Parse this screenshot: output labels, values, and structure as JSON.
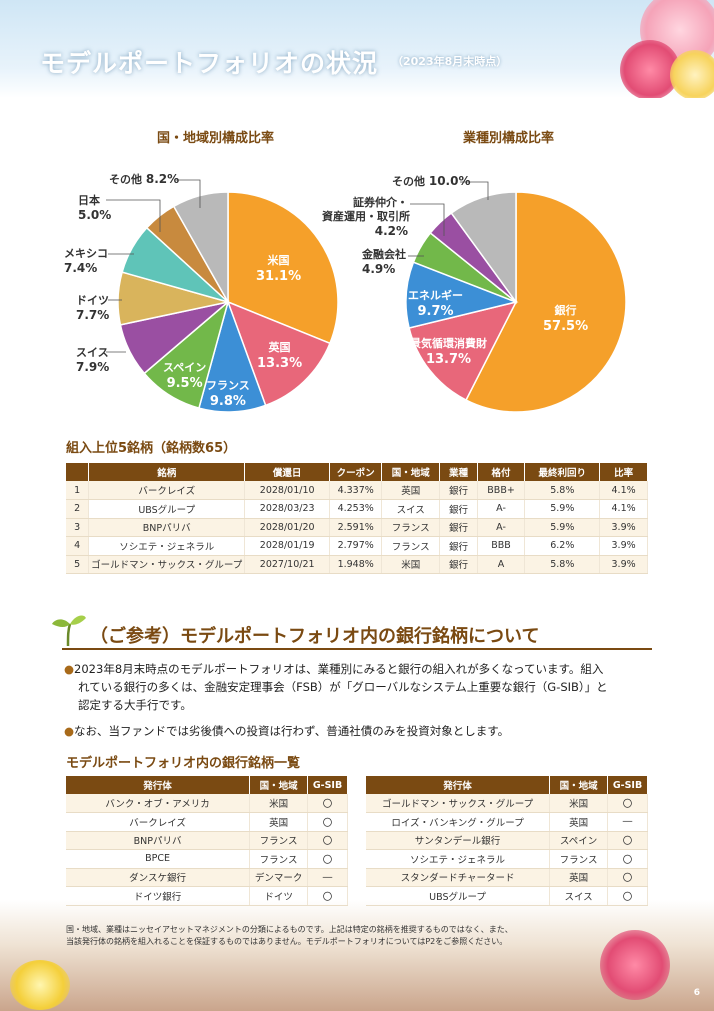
{
  "header": {
    "title": "モデルポートフォリオの状況",
    "date_note": "（2023年8月末時点）"
  },
  "colors": {
    "brown": "#7a4a12",
    "orange": "#f5a02a",
    "red": "#e8677a",
    "blue": "#3c8fd6",
    "green": "#72b84a",
    "purple": "#9a4fa2",
    "teal": "#5fc4b8",
    "sand": "#d9b45c",
    "ochre": "#c88a3e",
    "gray": "#b9b9b9"
  },
  "chart_data": [
    {
      "type": "pie",
      "title": "国・地域別構成比率",
      "slices": [
        {
          "name": "米国",
          "value": 31.1
        },
        {
          "name": "英国",
          "value": 13.3
        },
        {
          "name": "フランス",
          "value": 9.8
        },
        {
          "name": "スペイン",
          "value": 9.5
        },
        {
          "name": "スイス",
          "value": 7.9
        },
        {
          "name": "ドイツ",
          "value": 7.7
        },
        {
          "name": "メキシコ",
          "value": 7.4
        },
        {
          "name": "日本",
          "value": 5.0
        },
        {
          "name": "その他",
          "value": 8.2
        }
      ]
    },
    {
      "type": "pie",
      "title": "業種別構成比率",
      "slices": [
        {
          "name": "銀行",
          "value": 57.5
        },
        {
          "name": "景気循環消費財",
          "value": 13.7
        },
        {
          "name": "エネルギー",
          "value": 9.7
        },
        {
          "name": "金融会社",
          "value": 4.9
        },
        {
          "name": "証券仲介・資産運用・取引所",
          "value": 4.2
        },
        {
          "name": "その他",
          "value": 10.0
        }
      ]
    }
  ],
  "pie1_labels": {
    "us": "米国",
    "us_pct": "31.1%",
    "uk": "英国",
    "uk_pct": "13.3%",
    "fr": "フランス",
    "fr_pct": "9.8%",
    "es": "スペイン",
    "es_pct": "9.5%",
    "ch": "スイス",
    "ch_pct": "7.9%",
    "de": "ドイツ",
    "de_pct": "7.7%",
    "mx": "メキシコ",
    "mx_pct": "7.4%",
    "jp": "日本",
    "jp_pct": "5.0%",
    "other": "その他",
    "other_pct": "8.2%"
  },
  "pie2_labels": {
    "bank": "銀行",
    "bank_pct": "57.5%",
    "cyc": "景気循環消費財",
    "cyc_pct": "13.7%",
    "energy": "エネルギー",
    "energy_pct": "9.7%",
    "fin": "金融会社",
    "fin_pct": "4.9%",
    "sec1": "証券仲介・",
    "sec2": "資産運用・取引所",
    "sec_pct": "4.2%",
    "other": "その他",
    "other_pct": "10.0%"
  },
  "top5": {
    "heading": "組入上位5銘柄（銘柄数65）",
    "columns": [
      "",
      "銘柄",
      "償還日",
      "クーポン",
      "国・地域",
      "業種",
      "格付",
      "最終利回り",
      "比率"
    ],
    "rows": [
      [
        "1",
        "バークレイズ",
        "2028/01/10",
        "4.337%",
        "英国",
        "銀行",
        "BBB+",
        "5.8%",
        "4.1%"
      ],
      [
        "2",
        "UBSグループ",
        "2028/03/23",
        "4.253%",
        "スイス",
        "銀行",
        "A-",
        "5.9%",
        "4.1%"
      ],
      [
        "3",
        "BNPパリバ",
        "2028/01/20",
        "2.591%",
        "フランス",
        "銀行",
        "A-",
        "5.9%",
        "3.9%"
      ],
      [
        "4",
        "ソシエテ・ジェネラル",
        "2028/01/19",
        "2.797%",
        "フランス",
        "銀行",
        "BBB",
        "6.2%",
        "3.9%"
      ],
      [
        "5",
        "ゴールドマン・サックス・グループ",
        "2027/10/21",
        "1.948%",
        "米国",
        "銀行",
        "A",
        "5.8%",
        "3.9%"
      ]
    ]
  },
  "note": {
    "title": "（ご参考）モデルポートフォリオ内の銀行銘柄について",
    "bullet1_line1": "2023年8月末時点のモデルポートフォリオは、業種別にみると銀行の組入れが多くなっています。組入",
    "bullet1_line2": "れている銀行の多くは、金融安定理事会（FSB）が「グローバルなシステム上重要な銀行（G-SIB）」と",
    "bullet1_line3": "認定する大手行です。",
    "bullet2": "なお、当ファンドでは劣後債への投資は行わず、普通社債のみを投資対象とします。",
    "bullet_mark": "●"
  },
  "banks": {
    "heading": "モデルポートフォリオ内の銀行銘柄一覧",
    "columns": [
      "発行体",
      "国・地域",
      "G-SIB"
    ],
    "left_rows": [
      [
        "バンク・オブ・アメリカ",
        "米国",
        "〇"
      ],
      [
        "バークレイズ",
        "英国",
        "〇"
      ],
      [
        "BNPパリバ",
        "フランス",
        "〇"
      ],
      [
        "BPCE",
        "フランス",
        "〇"
      ],
      [
        "ダンスケ銀行",
        "デンマーク",
        "―"
      ],
      [
        "ドイツ銀行",
        "ドイツ",
        "〇"
      ]
    ],
    "right_rows": [
      [
        "ゴールドマン・サックス・グループ",
        "米国",
        "〇"
      ],
      [
        "ロイズ・バンキング・グループ",
        "英国",
        "―"
      ],
      [
        "サンタンデール銀行",
        "スペイン",
        "〇"
      ],
      [
        "ソシエテ・ジェネラル",
        "フランス",
        "〇"
      ],
      [
        "スタンダードチャータード",
        "英国",
        "〇"
      ],
      [
        "UBSグループ",
        "スイス",
        "〇"
      ]
    ]
  },
  "footnote": {
    "line1": "国・地域、業種はニッセイアセットマネジメントの分類によるものです。上記は特定の銘柄を推奨するものではなく、また、",
    "line2": "当該発行体の銘柄を組入れることを保証するものではありません。モデルポートフォリオについてはP2をご参照ください。"
  },
  "page_number": "6"
}
